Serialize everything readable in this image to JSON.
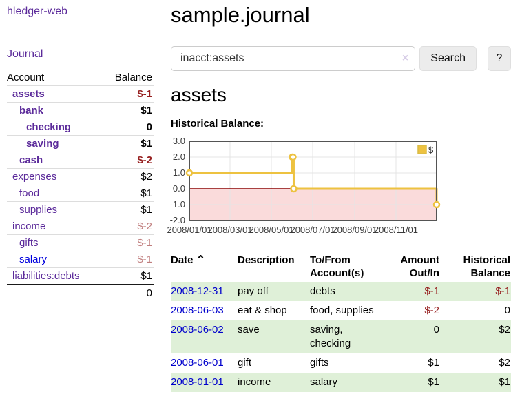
{
  "sidebar": {
    "brand": "hledger-web",
    "journal_link": "Journal",
    "accounts_table": {
      "headers": {
        "account": "Account",
        "balance": "Balance"
      },
      "rows": [
        {
          "name": "assets",
          "balance": "$-1"
        },
        {
          "name": "bank",
          "balance": "$1"
        },
        {
          "name": "checking",
          "balance": "0"
        },
        {
          "name": "saving",
          "balance": "$1"
        },
        {
          "name": "cash",
          "balance": "$-2"
        },
        {
          "name": "expenses",
          "balance": "$2"
        },
        {
          "name": "food",
          "balance": "$1"
        },
        {
          "name": "supplies",
          "balance": "$1"
        },
        {
          "name": "income",
          "balance": "$-2"
        },
        {
          "name": "gifts",
          "balance": "$-1"
        },
        {
          "name": "salary",
          "balance": "$-1"
        },
        {
          "name": "liabilities:debts",
          "balance": "$1"
        }
      ],
      "total": "0"
    }
  },
  "header": {
    "title": "sample.journal"
  },
  "search": {
    "value": "inacct:assets",
    "clear_icon": "×",
    "search_button": "Search",
    "help_button": "?"
  },
  "account_page": {
    "title": "assets",
    "chart_label": "Historical Balance:"
  },
  "chart_data": {
    "type": "line",
    "title": "Historical Balance",
    "step": true,
    "series": [
      {
        "name": "$",
        "color": "#edc240",
        "points": [
          {
            "date": "2008-01-01",
            "day": 0,
            "value": 1
          },
          {
            "date": "2008-06-01",
            "day": 152,
            "value": 2
          },
          {
            "date": "2008-06-02",
            "day": 153,
            "value": 2
          },
          {
            "date": "2008-06-03",
            "day": 154,
            "value": 0
          },
          {
            "date": "2008-12-31",
            "day": 365,
            "value": -1
          }
        ]
      }
    ],
    "x_ticks": [
      {
        "day": 0,
        "label": "2008/01/01"
      },
      {
        "day": 60,
        "label": "2008/03/01"
      },
      {
        "day": 121,
        "label": "2008/05/01"
      },
      {
        "day": 182,
        "label": "2008/07/01"
      },
      {
        "day": 244,
        "label": "2008/09/01"
      },
      {
        "day": 305,
        "label": "2008/11/01"
      }
    ],
    "y_ticks": [
      "3.0",
      "2.0",
      "1.0",
      "0.0",
      "-1.0",
      "-2.0"
    ],
    "ylim": [
      -2,
      3
    ],
    "xlim_days": [
      0,
      365
    ],
    "legend": {
      "label": "$",
      "swatch_color": "#edc240",
      "position": "top-right"
    },
    "grid": true,
    "grid_color": "#e4e4e4",
    "border_color": "#545454",
    "zero_line_color": "#8b0000",
    "negative_region_fill": "#fadbdb"
  },
  "register_table": {
    "headers": {
      "date": "Date",
      "sort_caret": "⌃",
      "description": "Description",
      "accounts": "To/From Account(s)",
      "amount": "Amount Out/In",
      "balance": "Historical Balance"
    },
    "rows": [
      {
        "date": "2008-12-31",
        "description": "pay off",
        "accounts": "debts",
        "amount": "$-1",
        "balance": "$-1"
      },
      {
        "date": "2008-06-03",
        "description": "eat & shop",
        "accounts": "food, supplies",
        "amount": "$-2",
        "balance": "0"
      },
      {
        "date": "2008-06-02",
        "description": "save",
        "accounts": "saving,\nchecking",
        "amount": "0",
        "balance": "$2"
      },
      {
        "date": "2008-06-01",
        "description": "gift",
        "accounts": "gifts",
        "amount": "$1",
        "balance": "$2"
      },
      {
        "date": "2008-01-01",
        "description": "income",
        "accounts": "salary",
        "amount": "$1",
        "balance": "$1"
      }
    ]
  },
  "colors": {
    "brand_purple": "#5b2a9a",
    "link_blue": "#0000cc",
    "negative_strong": "#961f1f",
    "negative_muted": "#c07e7e",
    "row_green": "#dff0d8",
    "series_gold": "#edc240"
  }
}
